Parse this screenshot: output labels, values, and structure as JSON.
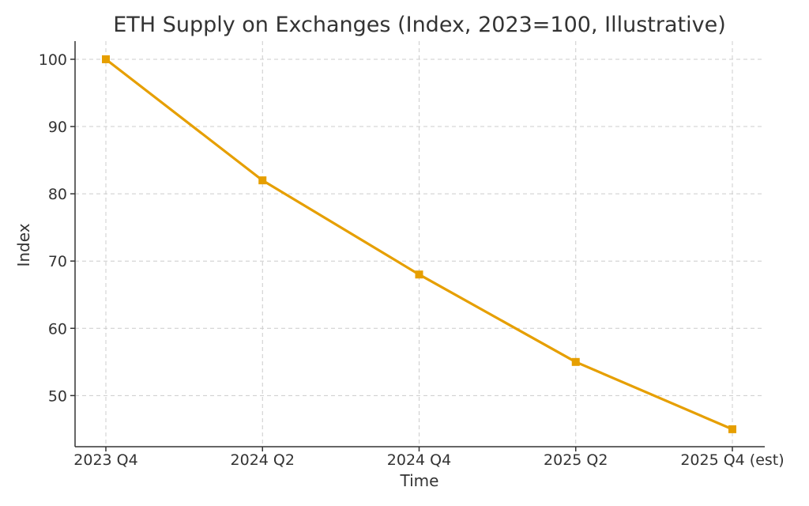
{
  "chart_data": {
    "type": "line",
    "title": "ETH Supply on Exchanges (Index, 2023=100, Illustrative)",
    "xlabel": "Time",
    "ylabel": "Index",
    "categories": [
      "2023 Q4",
      "2024 Q2",
      "2024 Q4",
      "2025 Q2",
      "2025 Q4 (est)"
    ],
    "series": [
      {
        "values": [
          100,
          82,
          68,
          55,
          45
        ],
        "color": "#E69F00",
        "marker": "square"
      }
    ],
    "ylim": [
      42.4,
      102.7
    ],
    "yticks": [
      50,
      60,
      70,
      80,
      90,
      100
    ],
    "grid": true
  }
}
